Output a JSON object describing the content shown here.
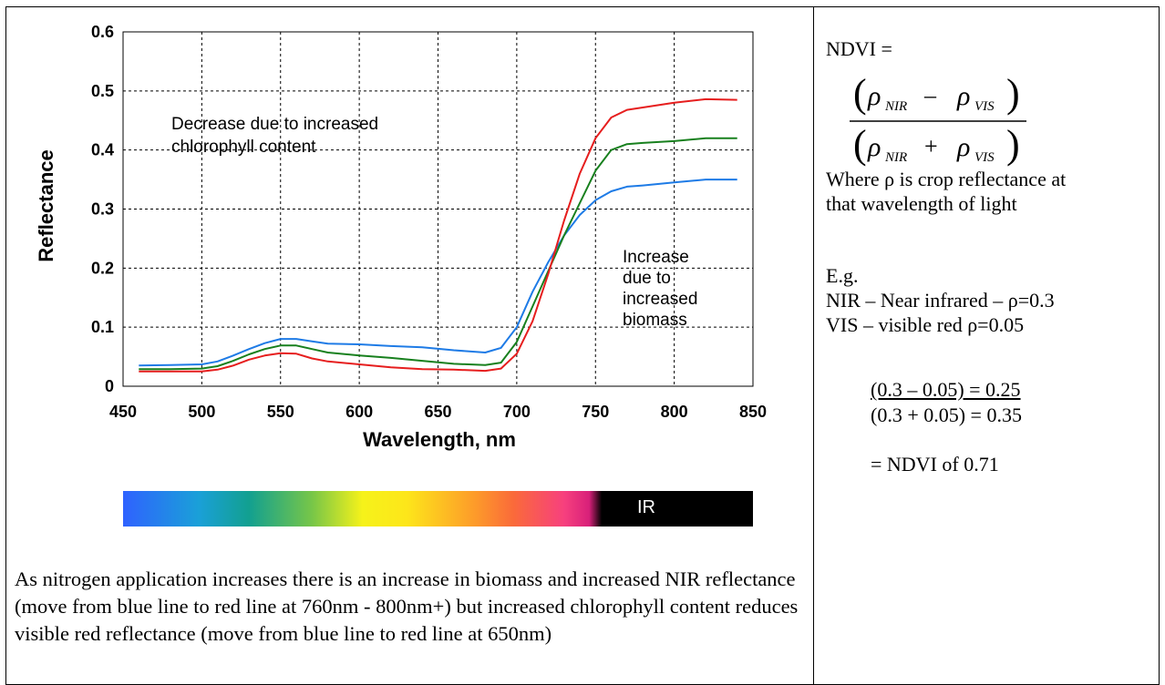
{
  "chart_data": {
    "type": "line",
    "xlabel": "Wavelength, nm",
    "ylabel": "Reflectance",
    "xlim": [
      450,
      850
    ],
    "ylim": [
      0,
      0.6
    ],
    "xticks": [
      450,
      500,
      550,
      600,
      650,
      700,
      750,
      800,
      850
    ],
    "yticks": [
      "0",
      "0.1",
      "0.2",
      "0.3",
      "0.4",
      "0.5",
      "0.6"
    ],
    "grid": true,
    "series": [
      {
        "color": "#1e7be6",
        "x": [
          460,
          480,
          500,
          510,
          520,
          530,
          540,
          550,
          560,
          570,
          580,
          600,
          620,
          640,
          660,
          680,
          690,
          700,
          710,
          720,
          730,
          740,
          750,
          760,
          770,
          780,
          800,
          820,
          840
        ],
        "y": [
          0.035,
          0.036,
          0.037,
          0.042,
          0.052,
          0.063,
          0.073,
          0.08,
          0.08,
          0.076,
          0.072,
          0.071,
          0.068,
          0.066,
          0.061,
          0.057,
          0.065,
          0.1,
          0.16,
          0.21,
          0.255,
          0.29,
          0.315,
          0.33,
          0.338,
          0.34,
          0.345,
          0.35,
          0.35
        ]
      },
      {
        "color": "#18801e",
        "x": [
          460,
          480,
          500,
          510,
          520,
          530,
          540,
          550,
          560,
          570,
          580,
          600,
          620,
          640,
          660,
          680,
          690,
          700,
          710,
          720,
          730,
          740,
          750,
          760,
          770,
          780,
          800,
          820,
          840
        ],
        "y": [
          0.029,
          0.029,
          0.03,
          0.034,
          0.043,
          0.054,
          0.063,
          0.069,
          0.069,
          0.063,
          0.057,
          0.052,
          0.048,
          0.043,
          0.038,
          0.036,
          0.04,
          0.075,
          0.135,
          0.195,
          0.255,
          0.31,
          0.365,
          0.4,
          0.41,
          0.412,
          0.415,
          0.42,
          0.42
        ]
      },
      {
        "color": "#e61e1e",
        "x": [
          460,
          480,
          500,
          510,
          520,
          530,
          540,
          550,
          560,
          570,
          580,
          600,
          620,
          640,
          660,
          680,
          690,
          700,
          710,
          720,
          730,
          740,
          750,
          760,
          770,
          780,
          800,
          820,
          840
        ],
        "y": [
          0.025,
          0.025,
          0.025,
          0.028,
          0.035,
          0.045,
          0.052,
          0.056,
          0.055,
          0.047,
          0.042,
          0.037,
          0.032,
          0.029,
          0.028,
          0.026,
          0.03,
          0.055,
          0.11,
          0.19,
          0.28,
          0.36,
          0.42,
          0.455,
          0.468,
          0.472,
          0.48,
          0.486,
          0.485
        ]
      }
    ],
    "annotations": [
      {
        "lines": [
          "Decrease due to increased",
          "chlorophyll content"
        ]
      },
      {
        "lines": [
          "Increase",
          "due to",
          "increased",
          "biomass"
        ]
      }
    ]
  },
  "spectrum_bar": {
    "label": "IR"
  },
  "caption": "As nitrogen application increases there is an increase in biomass and increased NIR reflectance (move from blue line to red line at 760nm - 800nm+) but increased chlorophyll content reduces visible red reflectance (move from blue line to red line at 650nm)",
  "ndvi_panel": {
    "heading": "NDVI =",
    "formula": {
      "rho": "ρ",
      "nir": "NIR",
      "vis": "VIS"
    },
    "where_line_1": "Where ρ is crop reflectance at",
    "where_line_2": "that wavelength of light",
    "eg": "E.g.",
    "nir_example": "NIR – Near infrared – ρ=0.3",
    "vis_example": "VIS – visible red ρ=0.05",
    "calc_numerator": "(0.3 – 0.05) = 0.25",
    "calc_denominator": "(0.3 + 0.05) = 0.35",
    "result": "= NDVI of 0.71"
  }
}
